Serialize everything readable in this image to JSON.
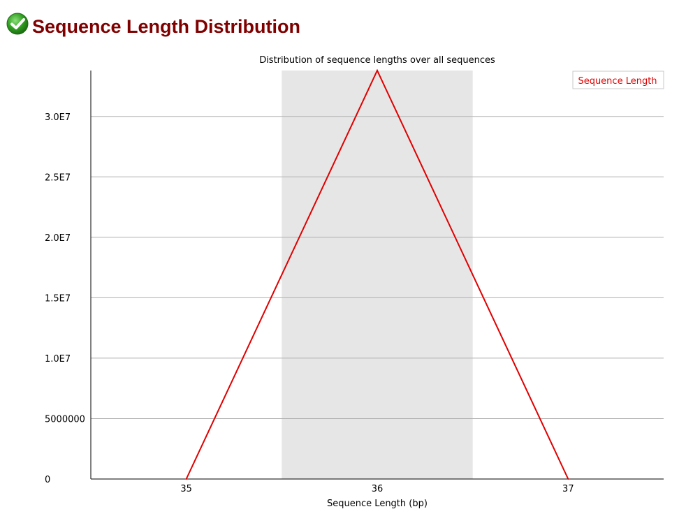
{
  "header": {
    "title": "Sequence Length Distribution",
    "status_icon": "check-circle-icon",
    "status_color": "#2e9e1f"
  },
  "colors": {
    "title": "#800000",
    "series_line": "#e00000",
    "band_shade": "#e6e6e6",
    "gridline": "#b0b0b0",
    "axis": "#000000"
  },
  "chart_data": {
    "type": "line",
    "title": "Distribution of sequence lengths over all sequences",
    "xlabel": "Sequence Length (bp)",
    "ylabel": "",
    "x": [
      35,
      36,
      37
    ],
    "xlim": [
      34.5,
      37.5
    ],
    "ylim": [
      0,
      33800000
    ],
    "x_ticks": [
      35,
      36,
      37
    ],
    "x_tick_labels": [
      "35",
      "36",
      "37"
    ],
    "y_ticks": [
      0,
      5000000,
      10000000,
      15000000,
      20000000,
      25000000,
      30000000
    ],
    "y_tick_labels": [
      "0",
      "5000000",
      "1.0E7",
      "1.5E7",
      "2.0E7",
      "2.5E7",
      "3.0E7"
    ],
    "shaded_bands": [
      {
        "x0": 35.5,
        "x1": 36.5
      }
    ],
    "series": [
      {
        "name": "Sequence Length",
        "values": [
          0,
          33800000,
          0
        ]
      }
    ],
    "grid": true,
    "legend_position": "top-right"
  }
}
